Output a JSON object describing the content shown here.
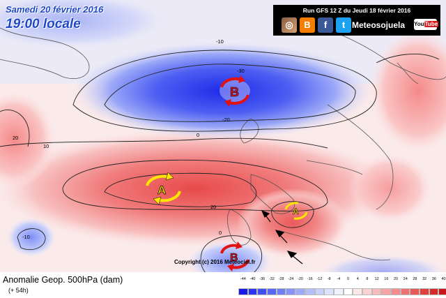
{
  "header": {
    "date": "Samedi 20 février 2016",
    "time": "19:00 locale",
    "run": "Run GFS 12 Z du Jeudi 18 février 2016",
    "brand": "Meteosojuela",
    "youtube": "YouTube"
  },
  "icons": [
    "instagram-icon",
    "blogger-icon",
    "facebook-icon",
    "twitter-icon",
    "youtube-icon"
  ],
  "footer": {
    "caption": "Anomalie Geop. 500hPa (dam)",
    "subcaption": "(+ 54h)",
    "copyright": "Copyright (c) 2016 Meteociel.fr"
  },
  "scale": {
    "ticks": [
      "-44",
      "-40",
      "-36",
      "-32",
      "-28",
      "-24",
      "-20",
      "-16",
      "-12",
      "-8",
      "-4",
      "0",
      "4",
      "8",
      "12",
      "16",
      "20",
      "24",
      "28",
      "32",
      "36",
      "40"
    ],
    "colors": [
      "#1a1ae6",
      "#2d35ee",
      "#3f4ff3",
      "#5668f5",
      "#6e7ff6",
      "#8694f7",
      "#9daaf9",
      "#b4bffa",
      "#c9d1fb",
      "#dde3fd",
      "#eef1fe",
      "#ffffff",
      "#fde8e8",
      "#fbd3d3",
      "#f9bcbc",
      "#f6a4a4",
      "#f38c8c",
      "#ef7272",
      "#ea5858",
      "#e23f3f",
      "#d62a2a",
      "#c81717"
    ]
  },
  "contour_labels": [
    "-10",
    "-30",
    "-20",
    "0",
    "20",
    "10",
    "20",
    "-10",
    "0"
  ],
  "systems": [
    {
      "label": "B",
      "type": "low"
    },
    {
      "label": "A",
      "type": "high"
    },
    {
      "label": "A",
      "type": "high"
    },
    {
      "label": "B",
      "type": "low"
    }
  ],
  "colors": {
    "blue_anomaly": "#3f4ff3",
    "red_anomaly": "#ef6a6a",
    "high_symbol": "#ffe600",
    "low_symbol": "#e21212"
  }
}
